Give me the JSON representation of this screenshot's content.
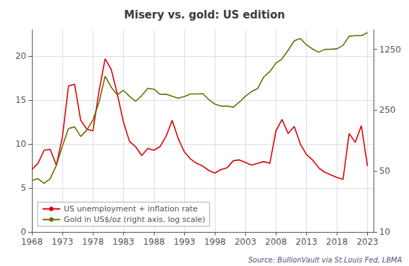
{
  "chart_data": {
    "type": "line",
    "title": "Misery vs. gold: US edition",
    "annotations": [
      "Source: BullionVault via St.Louis Fed, LBMA"
    ],
    "x": [
      1968,
      1969,
      1970,
      1971,
      1972,
      1973,
      1974,
      1975,
      1976,
      1977,
      1978,
      1979,
      1980,
      1981,
      1982,
      1983,
      1984,
      1985,
      1986,
      1987,
      1988,
      1989,
      1990,
      1991,
      1992,
      1993,
      1994,
      1995,
      1996,
      1997,
      1998,
      1999,
      2000,
      2001,
      2002,
      2003,
      2004,
      2005,
      2006,
      2007,
      2008,
      2009,
      2010,
      2011,
      2012,
      2013,
      2014,
      2015,
      2016,
      2017,
      2018,
      2019,
      2020,
      2021,
      2022,
      2023
    ],
    "series": [
      {
        "name": "US unemployment + inflation rate",
        "color": "#dd0000",
        "axis": "y",
        "values": [
          7.1,
          7.8,
          9.3,
          9.4,
          7.6,
          10.8,
          16.6,
          16.8,
          12.7,
          11.7,
          11.5,
          16.0,
          19.7,
          18.5,
          15.7,
          12.5,
          10.3,
          9.7,
          8.7,
          9.5,
          9.3,
          9.7,
          10.9,
          12.7,
          10.6,
          9.1,
          8.3,
          7.8,
          7.5,
          7.0,
          6.7,
          7.1,
          7.3,
          8.1,
          8.2,
          7.9,
          7.6,
          7.8,
          8.0,
          7.8,
          11.5,
          12.8,
          11.2,
          12.0,
          10.0,
          8.8,
          8.2,
          7.3,
          6.8,
          6.5,
          6.2,
          6.0,
          11.2,
          10.2,
          12.1,
          7.5
        ]
      },
      {
        "name": "Gold in US$/oz (right axis, log scale)",
        "color": "#6b6b00",
        "axis": "y2",
        "values": [
          39,
          41,
          36,
          41,
          58,
          97,
          154,
          161,
          125,
          148,
          193,
          307,
          615,
          460,
          376,
          424,
          361,
          317,
          368,
          447,
          437,
          381,
          383,
          362,
          344,
          360,
          384,
          384,
          388,
          331,
          294,
          279,
          279,
          271,
          310,
          363,
          410,
          444,
          603,
          695,
          872,
          972,
          1225,
          1571,
          1669,
          1411,
          1266,
          1160,
          1251,
          1257,
          1268,
          1393,
          1770,
          1800,
          1800,
          1950
        ]
      }
    ],
    "xlim": [
      1968,
      2024
    ],
    "xticks": [
      1968,
      1973,
      1978,
      1983,
      1988,
      1993,
      1998,
      2003,
      2008,
      2013,
      2018,
      2023
    ],
    "ylim": [
      0,
      23
    ],
    "yticks": [
      0,
      5,
      10,
      15,
      20
    ],
    "y2lim": [
      10,
      2100
    ],
    "y2ticks": [
      10,
      50,
      250,
      1250
    ],
    "log": "y2",
    "grid": true,
    "legend": "lower left"
  }
}
